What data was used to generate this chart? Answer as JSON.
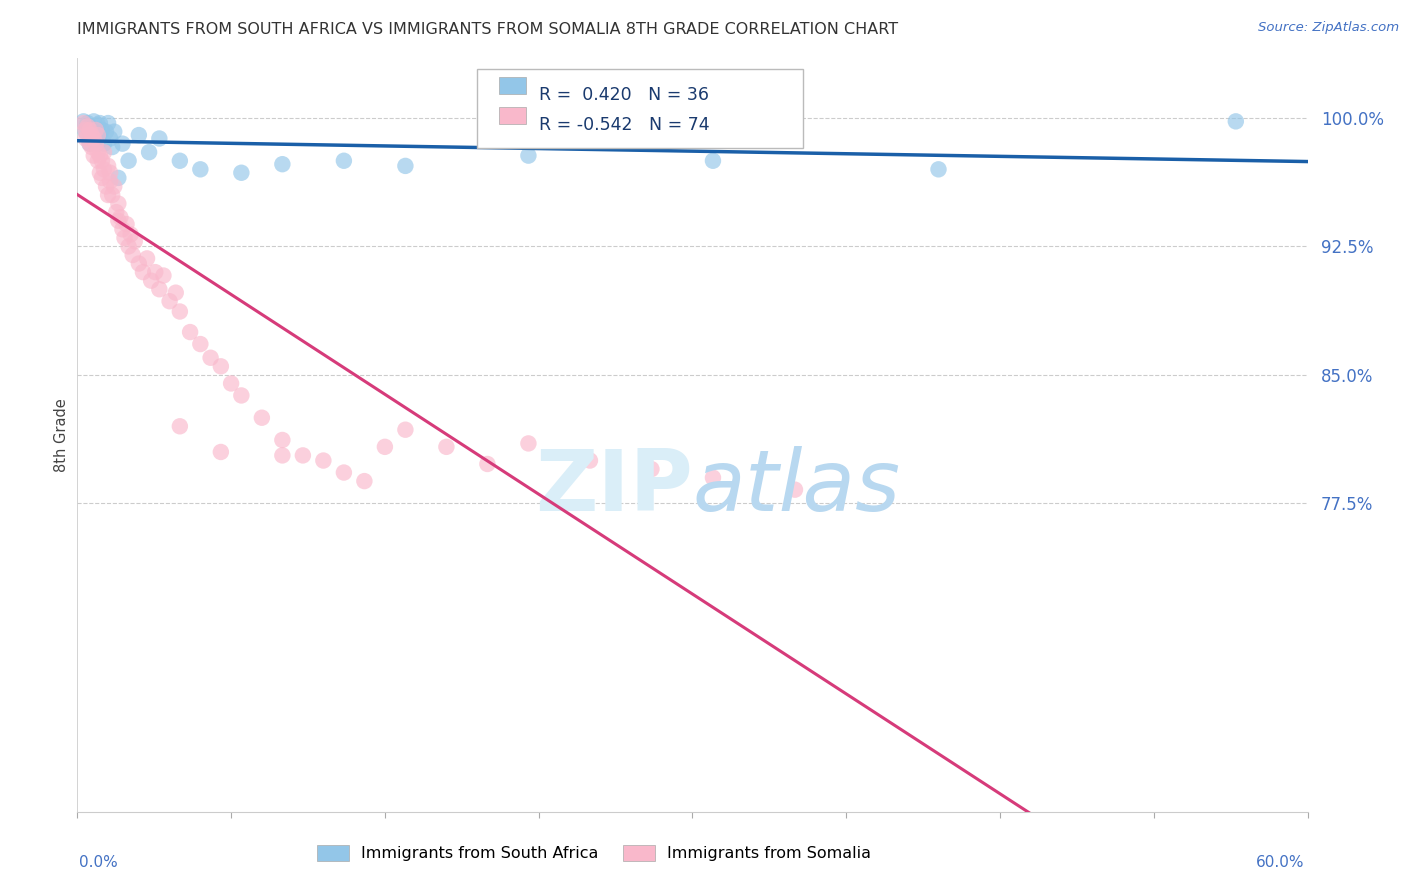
{
  "title": "IMMIGRANTS FROM SOUTH AFRICA VS IMMIGRANTS FROM SOMALIA 8TH GRADE CORRELATION CHART",
  "source": "Source: ZipAtlas.com",
  "ylabel": "8th Grade",
  "xmin": 0.0,
  "xmax": 0.6,
  "ymin": 0.595,
  "ymax": 1.035,
  "ytick_vals": [
    0.775,
    0.85,
    0.925,
    1.0
  ],
  "ytick_labels": [
    "77.5%",
    "85.0%",
    "92.5%",
    "100.0%"
  ],
  "blue_color": "#93c6e8",
  "pink_color": "#f9b8cb",
  "blue_line_color": "#1a5fa8",
  "pink_line_color": "#d63b7a",
  "r_blue": 0.42,
  "n_blue": 36,
  "r_pink": -0.542,
  "n_pink": 74,
  "blue_label": "Immigrants from South Africa",
  "pink_label": "Immigrants from Somalia",
  "sa_x": [
    0.003,
    0.004,
    0.005,
    0.006,
    0.006,
    0.007,
    0.008,
    0.008,
    0.009,
    0.01,
    0.01,
    0.011,
    0.011,
    0.012,
    0.013,
    0.014,
    0.015,
    0.016,
    0.017,
    0.018,
    0.02,
    0.022,
    0.025,
    0.03,
    0.035,
    0.04,
    0.05,
    0.06,
    0.08,
    0.1,
    0.13,
    0.16,
    0.22,
    0.31,
    0.42,
    0.565
  ],
  "sa_y": [
    0.998,
    0.992,
    0.997,
    0.985,
    0.995,
    0.99,
    0.998,
    0.988,
    0.993,
    0.996,
    0.985,
    0.99,
    0.997,
    0.993,
    0.985,
    0.992,
    0.997,
    0.988,
    0.983,
    0.992,
    0.965,
    0.985,
    0.975,
    0.99,
    0.98,
    0.988,
    0.975,
    0.97,
    0.968,
    0.973,
    0.975,
    0.972,
    0.978,
    0.975,
    0.97,
    0.998
  ],
  "som_x": [
    0.003,
    0.004,
    0.004,
    0.005,
    0.005,
    0.006,
    0.006,
    0.007,
    0.007,
    0.008,
    0.008,
    0.009,
    0.009,
    0.01,
    0.01,
    0.01,
    0.011,
    0.011,
    0.012,
    0.012,
    0.013,
    0.013,
    0.014,
    0.015,
    0.015,
    0.016,
    0.016,
    0.017,
    0.018,
    0.019,
    0.02,
    0.02,
    0.021,
    0.022,
    0.023,
    0.024,
    0.025,
    0.026,
    0.027,
    0.028,
    0.03,
    0.032,
    0.034,
    0.036,
    0.038,
    0.04,
    0.042,
    0.045,
    0.048,
    0.05,
    0.055,
    0.06,
    0.065,
    0.07,
    0.075,
    0.08,
    0.09,
    0.1,
    0.11,
    0.12,
    0.13,
    0.14,
    0.16,
    0.18,
    0.2,
    0.22,
    0.25,
    0.28,
    0.31,
    0.35,
    0.05,
    0.07,
    0.1,
    0.15
  ],
  "som_y": [
    0.997,
    0.993,
    0.988,
    0.99,
    0.995,
    0.985,
    0.993,
    0.983,
    0.99,
    0.988,
    0.978,
    0.993,
    0.985,
    0.98,
    0.99,
    0.975,
    0.968,
    0.978,
    0.965,
    0.975,
    0.97,
    0.98,
    0.96,
    0.955,
    0.972,
    0.963,
    0.968,
    0.955,
    0.96,
    0.945,
    0.95,
    0.94,
    0.942,
    0.935,
    0.93,
    0.938,
    0.925,
    0.932,
    0.92,
    0.928,
    0.915,
    0.91,
    0.918,
    0.905,
    0.91,
    0.9,
    0.908,
    0.893,
    0.898,
    0.887,
    0.875,
    0.868,
    0.86,
    0.855,
    0.845,
    0.838,
    0.825,
    0.812,
    0.803,
    0.8,
    0.793,
    0.788,
    0.818,
    0.808,
    0.798,
    0.81,
    0.8,
    0.795,
    0.79,
    0.783,
    0.82,
    0.805,
    0.803,
    0.808
  ]
}
